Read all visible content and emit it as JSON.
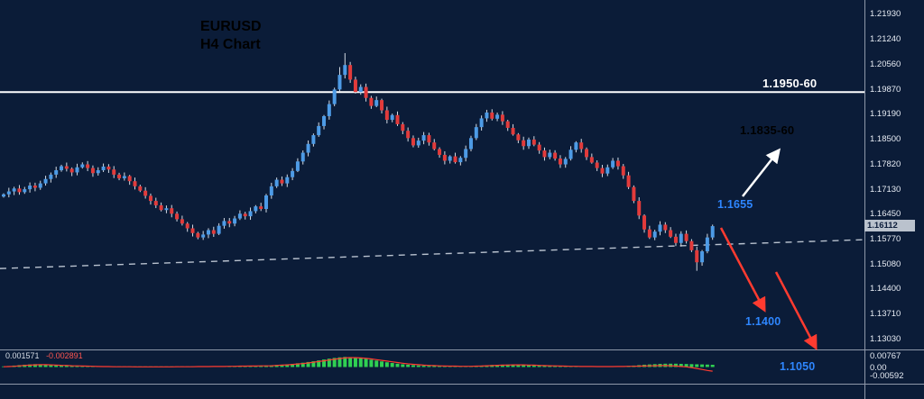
{
  "title": {
    "line1": "EURUSD",
    "line2": "H4 Chart"
  },
  "annotations": {
    "resistance": "1.1950-60",
    "target_up": "1.1835-60",
    "level": "1.1655",
    "target_down1": "1.1400",
    "target_down2": "1.1050"
  },
  "price_scale": {
    "labels": [
      "1.21930",
      "1.21240",
      "1.20560",
      "1.19870",
      "1.19190",
      "1.18500",
      "1.17820",
      "1.17130",
      "1.16450",
      "1.15770",
      "1.15080",
      "1.14400",
      "1.13710",
      "1.13030"
    ],
    "current": "1.16112"
  },
  "indicator_scale": {
    "labels": [
      "0.00767",
      "0.00",
      "-0.00592"
    ]
  },
  "indicator_readout": {
    "main": "0.001571",
    "signal": "-0.002891"
  },
  "colors": {
    "background": "#0b1c38",
    "bull": "#4d9be6",
    "bear": "#e23b3b",
    "wick": "#d4dbe4",
    "resistance_line": "#ffffff",
    "trendline": "#b9c2cf",
    "histogram": "#2fd052",
    "signal_line": "#ff3b30",
    "label_blue": "#2e86ff",
    "label_black": "#000000",
    "label_white": "#ffffff"
  },
  "chart_data": {
    "type": "candlestick",
    "title": "EURUSD H4 Chart",
    "symbol": "EURUSD",
    "timeframe": "H4",
    "y_axis": {
      "min": 1.1303,
      "max": 1.2193,
      "ticks": [
        1.2193,
        1.2124,
        1.2056,
        1.1987,
        1.1919,
        1.185,
        1.1782,
        1.1713,
        1.1645,
        1.1577,
        1.1508,
        1.144,
        1.1371,
        1.1303
      ]
    },
    "levels": {
      "resistance_zone": "1.1950-60",
      "upside_target": "1.1835-60",
      "pivot": 1.1655,
      "downside_target_1": 1.14,
      "downside_target_2": 1.105
    },
    "resistance_line_price": 1.1978,
    "trendline": {
      "start_price": 1.1495,
      "end_price": 1.1574,
      "style": "dashed"
    },
    "current_price": 1.16112,
    "closes": [
      1.1698,
      1.1706,
      1.1714,
      1.1704,
      1.1712,
      1.1722,
      1.1716,
      1.1728,
      1.174,
      1.1752,
      1.1764,
      1.1775,
      1.1768,
      1.1758,
      1.1772,
      1.178,
      1.177,
      1.1756,
      1.1764,
      1.1774,
      1.1766,
      1.1752,
      1.1742,
      1.1748,
      1.1734,
      1.172,
      1.1708,
      1.1694,
      1.168,
      1.1668,
      1.1655,
      1.166,
      1.1645,
      1.163,
      1.1618,
      1.1605,
      1.1592,
      1.158,
      1.1588,
      1.16,
      1.159,
      1.1612,
      1.1625,
      1.1618,
      1.1632,
      1.1645,
      1.1638,
      1.1652,
      1.1665,
      1.1658,
      1.1695,
      1.172,
      1.1738,
      1.1728,
      1.1745,
      1.1762,
      1.1788,
      1.1812,
      1.1836,
      1.186,
      1.1885,
      1.1912,
      1.1945,
      1.1985,
      1.2025,
      1.2052,
      1.2012,
      1.1978,
      1.1992,
      1.1962,
      1.194,
      1.1956,
      1.1928,
      1.1902,
      1.1915,
      1.189,
      1.1872,
      1.1852,
      1.1832,
      1.1845,
      1.186,
      1.184,
      1.1822,
      1.1806,
      1.179,
      1.1802,
      1.1786,
      1.1798,
      1.1822,
      1.1852,
      1.1882,
      1.1906,
      1.1922,
      1.1905,
      1.1916,
      1.1898,
      1.188,
      1.1862,
      1.1846,
      1.183,
      1.1848,
      1.1834,
      1.1818,
      1.18,
      1.1812,
      1.1796,
      1.178,
      1.1795,
      1.182,
      1.184,
      1.1822,
      1.18,
      1.1785,
      1.177,
      1.1755,
      1.1772,
      1.179,
      1.1775,
      1.175,
      1.1718,
      1.168,
      1.164,
      1.1602,
      1.158,
      1.1596,
      1.1615,
      1.16,
      1.1582,
      1.1565,
      1.159,
      1.157,
      1.1545,
      1.1512,
      1.1542,
      1.158,
      1.1611
    ],
    "indicator": {
      "type": "histogram+signal",
      "zero_axis_labels": [
        0.00767,
        0,
        -0.00592
      ],
      "histogram": [
        0.0004,
        0.0007,
        0.001,
        0.0013,
        0.0016,
        0.0018,
        0.002,
        0.0019,
        0.0017,
        0.0015,
        0.0013,
        0.0011,
        0.0009,
        0.0007,
        0.0006,
        0.0005,
        0.0004,
        0.0003,
        0.0003,
        0.0002,
        0.0002,
        0.0002,
        0.0001,
        0.0001,
        0.0001,
        0.0001,
        0.0001,
        0.0001,
        0.0001,
        0.0001,
        0.0001,
        0.0001,
        0.0002,
        0.0002,
        0.0002,
        0.0003,
        0.0003,
        0.0003,
        0.0004,
        0.0004,
        0.0004,
        0.0005,
        0.0005,
        0.0006,
        0.0006,
        0.0007,
        0.0007,
        0.0008,
        0.0008,
        0.0009,
        0.001,
        0.0012,
        0.0014,
        0.0016,
        0.0019,
        0.0022,
        0.0026,
        0.003,
        0.0035,
        0.004,
        0.0046,
        0.0052,
        0.0058,
        0.0063,
        0.0067,
        0.007,
        0.0069,
        0.0066,
        0.0062,
        0.0057,
        0.0051,
        0.0045,
        0.0039,
        0.0033,
        0.0028,
        0.0023,
        0.0019,
        0.0016,
        0.0013,
        0.0011,
        0.0009,
        0.0008,
        0.0007,
        0.0006,
        0.0005,
        0.0005,
        0.0004,
        0.0004,
        0.0005,
        0.0006,
        0.0008,
        0.001,
        0.0012,
        0.0014,
        0.0015,
        0.0016,
        0.0017,
        0.0017,
        0.0016,
        0.0015,
        0.0013,
        0.0011,
        0.0009,
        0.0008,
        0.0007,
        0.0006,
        0.0005,
        0.0005,
        0.0004,
        0.0004,
        0.0004,
        0.0003,
        0.0003,
        0.0003,
        0.0003,
        0.0004,
        0.0004,
        0.0005,
        0.0006,
        0.0008,
        0.001,
        0.0013,
        0.0016,
        0.0018,
        0.002,
        0.0022,
        0.0023,
        0.0023,
        0.0023,
        0.0022,
        0.0021,
        0.002,
        0.0019,
        0.0018,
        0.0017,
        0.001571
      ],
      "signal": [
        0.0002,
        0.0003,
        0.0005,
        0.0008,
        0.0011,
        0.0013,
        0.0015,
        0.0016,
        0.0016,
        0.0015,
        0.0014,
        0.0012,
        0.0011,
        0.0009,
        0.0008,
        0.0007,
        0.0006,
        0.0005,
        0.0004,
        0.0003,
        0.0003,
        0.0002,
        0.0002,
        0.0002,
        0.0002,
        0.0001,
        0.0001,
        0.0001,
        0.0001,
        0.0001,
        0.0001,
        0.0001,
        0.0001,
        0.0002,
        0.0002,
        0.0002,
        0.0002,
        0.0003,
        0.0003,
        0.0003,
        0.0004,
        0.0004,
        0.0004,
        0.0005,
        0.0005,
        0.0006,
        0.0006,
        0.0007,
        0.0007,
        0.0008,
        0.0008,
        0.0009,
        0.0011,
        0.0013,
        0.0015,
        0.0018,
        0.0021,
        0.0024,
        0.0028,
        0.0033,
        0.0038,
        0.0043,
        0.0049,
        0.0054,
        0.0059,
        0.0063,
        0.0065,
        0.0065,
        0.0063,
        0.006,
        0.0056,
        0.0051,
        0.0046,
        0.0041,
        0.0036,
        0.0031,
        0.0026,
        0.0022,
        0.0019,
        0.0016,
        0.0013,
        0.0011,
        0.001,
        0.0008,
        0.0007,
        0.0006,
        0.0006,
        0.0005,
        0.0005,
        0.0005,
        0.0006,
        0.0007,
        0.0009,
        0.001,
        0.0012,
        0.0013,
        0.0014,
        0.0015,
        0.0015,
        0.0015,
        0.0014,
        0.0013,
        0.0011,
        0.001,
        0.0009,
        0.0008,
        0.0007,
        0.0006,
        0.0005,
        0.0005,
        0.0004,
        0.0004,
        0.0004,
        0.0003,
        0.0003,
        0.0003,
        0.0003,
        0.0004,
        0.0004,
        0.0005,
        0.0005,
        0.0006,
        0.0007,
        0.0008,
        0.0009,
        0.001,
        0.001,
        0.0009,
        0.0007,
        0.0004,
        0.0001,
        -0.0004,
        -0.001,
        -0.0017,
        -0.0024,
        -0.002891
      ]
    }
  }
}
